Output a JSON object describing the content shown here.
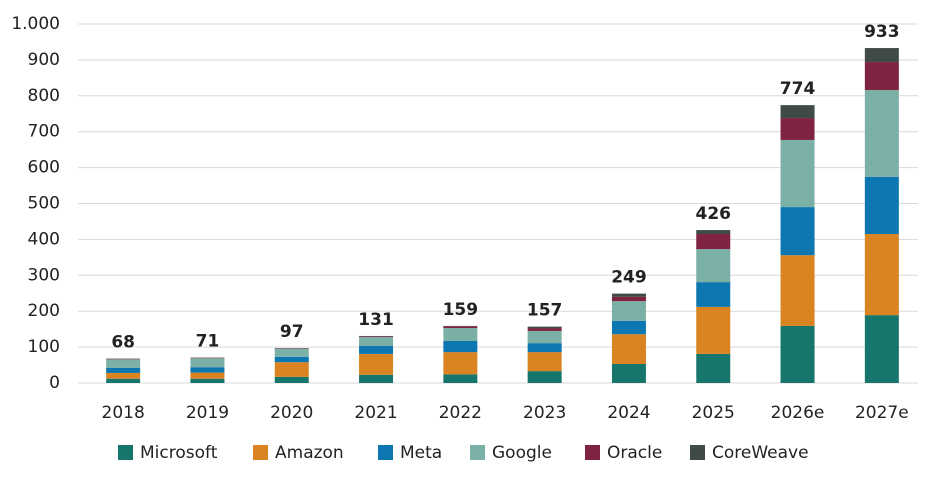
{
  "chart_data": {
    "type": "stacked_bar",
    "categories": [
      "2018",
      "2019",
      "2020",
      "2021",
      "2022",
      "2023",
      "2024",
      "2025",
      "2026e",
      "2027e"
    ],
    "series": [
      {
        "name": "Microsoft",
        "color": "#17766b",
        "values": [
          12,
          12,
          17,
          23,
          24,
          33,
          53,
          81,
          159,
          189
        ]
      },
      {
        "name": "Amazon",
        "color": "#d98321",
        "values": [
          16,
          17,
          41,
          58,
          62,
          53,
          83,
          131,
          197,
          226
        ]
      },
      {
        "name": "Meta",
        "color": "#0c77b0",
        "values": [
          14,
          15,
          15,
          22,
          31,
          25,
          37,
          69,
          134,
          159
        ]
      },
      {
        "name": "Google",
        "color": "#7bb0a6",
        "values": [
          24,
          25,
          22,
          25,
          36,
          34,
          55,
          92,
          187,
          242
        ]
      },
      {
        "name": "Oracle",
        "color": "#7f2440",
        "values": [
          1,
          1,
          1,
          2,
          5,
          8,
          12,
          42,
          61,
          78
        ]
      },
      {
        "name": "CoreWeave",
        "color": "#3f4a49",
        "values": [
          1,
          1,
          1,
          1,
          1,
          4,
          9,
          11,
          36,
          39
        ]
      }
    ],
    "totals": [
      68,
      71,
      97,
      131,
      159,
      157,
      249,
      426,
      774,
      933
    ],
    "ylim": [
      0,
      1000
    ],
    "yticks": [
      0,
      100,
      200,
      300,
      400,
      500,
      600,
      700,
      800,
      900,
      {
        "value": 1000,
        "label": "1.000"
      }
    ],
    "grid": true,
    "legend": "bottom"
  }
}
